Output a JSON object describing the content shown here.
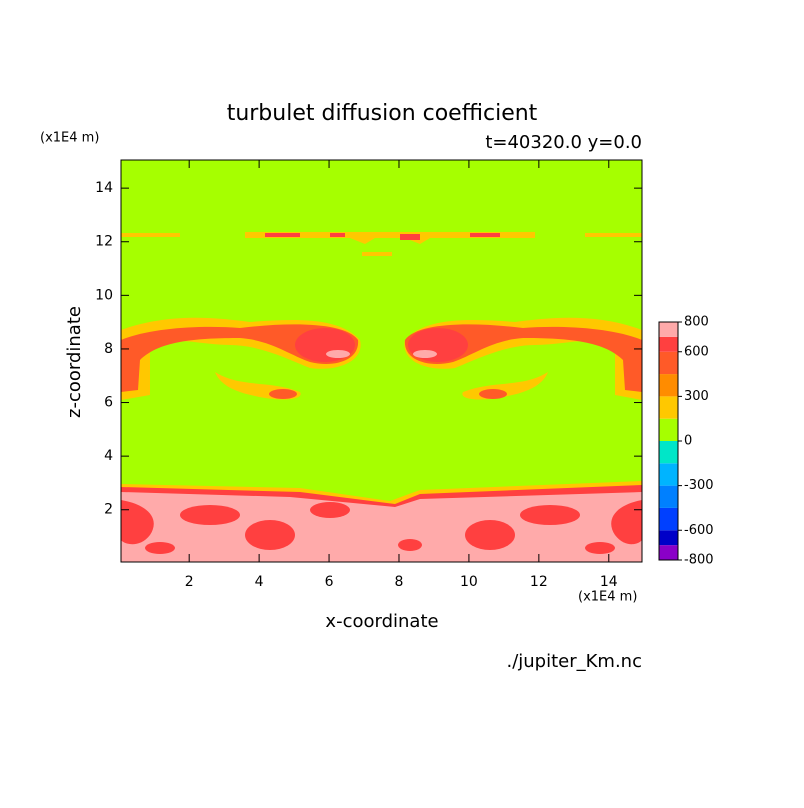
{
  "chart_data": {
    "type": "contour",
    "title": "turbulet diffusion coefficient",
    "subtitle": "t=40320.0 y=0.0",
    "x_label": "x-coordinate",
    "y_label": "z-coordinate",
    "x_unit": "(x1E4 m)",
    "y_unit": "(x1E4 m)",
    "source": "./jupiter_Km.nc",
    "xlim": [
      0.05,
      14.95
    ],
    "ylim": [
      0.05,
      15.05
    ],
    "xticks": [
      2,
      4,
      6,
      8,
      10,
      12,
      14
    ],
    "yticks": [
      2,
      4,
      6,
      8,
      10,
      12,
      14
    ],
    "colorbar": {
      "levels": [
        -800,
        -700,
        -600,
        -450,
        -300,
        -150,
        0,
        150,
        300,
        450,
        600,
        700,
        800
      ],
      "colors": [
        "#8a00c8",
        "#0000c8",
        "#0040ff",
        "#0080ff",
        "#00b4ff",
        "#00e6c8",
        "#a6ff00",
        "#ffc800",
        "#ff8c00",
        "#ff5a28",
        "#ff4040",
        "#ffaaaa"
      ],
      "ticks": [
        -800,
        -600,
        -300,
        0,
        300,
        600,
        800
      ]
    }
  }
}
